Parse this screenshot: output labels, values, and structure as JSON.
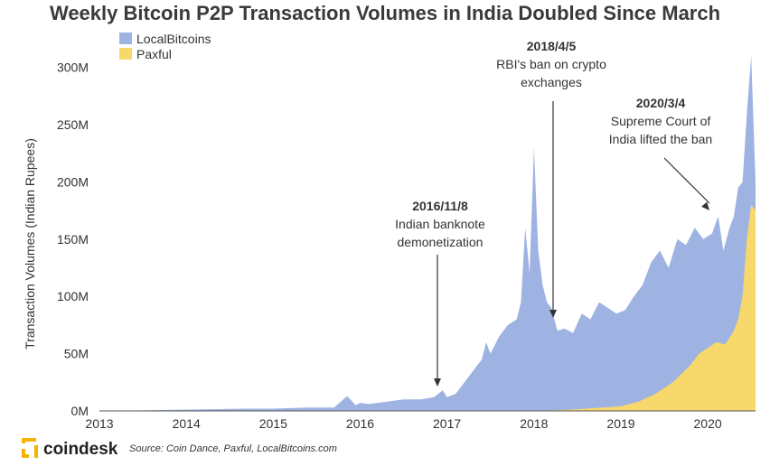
{
  "chart_data": {
    "type": "area",
    "title": "Weekly Bitcoin P2P Transaction Volumes in India Doubled Since March",
    "xlabel": "",
    "ylabel": "Transaction Volumes (Indian Rupees)",
    "xlim": [
      2013.0,
      2020.55
    ],
    "ylim": [
      0,
      310
    ],
    "y_unit": "M",
    "y_ticks": [
      "0M",
      "50M",
      "100M",
      "150M",
      "200M",
      "250M",
      "300M"
    ],
    "y_tick_values": [
      0,
      50,
      100,
      150,
      200,
      250,
      300
    ],
    "x_ticks": [
      "2013",
      "2014",
      "2015",
      "2016",
      "2017",
      "2018",
      "2019",
      "2020"
    ],
    "x_tick_values": [
      2013,
      2014,
      2015,
      2016,
      2017,
      2018,
      2019,
      2020
    ],
    "grid": false,
    "legend_position": "top-left",
    "stacked": true,
    "series": [
      {
        "name": "LocalBitcoins",
        "color": "#9fb3e3",
        "x": [
          2013.0,
          2013.5,
          2013.9,
          2014.3,
          2014.7,
          2015.0,
          2015.4,
          2015.7,
          2015.85,
          2015.95,
          2016.0,
          2016.1,
          2016.3,
          2016.5,
          2016.7,
          2016.85,
          2016.95,
          2017.0,
          2017.1,
          2017.2,
          2017.3,
          2017.4,
          2017.45,
          2017.5,
          2017.6,
          2017.7,
          2017.8,
          2017.85,
          2017.9,
          2017.95,
          2018.0,
          2018.05,
          2018.1,
          2018.15,
          2018.2,
          2018.27,
          2018.35,
          2018.45,
          2018.55,
          2018.65,
          2018.75,
          2018.85,
          2018.95,
          2019.05,
          2019.15,
          2019.25,
          2019.35,
          2019.45,
          2019.55,
          2019.65,
          2019.75,
          2019.85,
          2019.95,
          2020.05,
          2020.12,
          2020.18,
          2020.25,
          2020.3,
          2020.35,
          2020.4,
          2020.45,
          2020.5,
          2020.55
        ],
        "values": [
          0,
          0.5,
          1,
          1.5,
          2,
          2,
          3,
          3,
          13,
          5,
          7,
          6,
          8,
          10,
          10,
          12,
          18,
          12,
          15,
          25,
          35,
          45,
          60,
          50,
          65,
          75,
          80,
          95,
          160,
          120,
          230,
          140,
          110,
          95,
          90,
          70,
          72,
          68,
          85,
          80,
          95,
          90,
          85,
          88,
          100,
          110,
          130,
          140,
          125,
          150,
          145,
          160,
          150,
          155,
          170,
          140,
          160,
          170,
          195,
          200,
          260,
          310,
          200
        ]
      },
      {
        "name": "Paxful",
        "color": "#f7d86a",
        "x": [
          2013.0,
          2018.0,
          2018.4,
          2018.6,
          2018.8,
          2019.0,
          2019.2,
          2019.4,
          2019.6,
          2019.8,
          2019.9,
          2020.0,
          2020.1,
          2020.2,
          2020.3,
          2020.35,
          2020.4,
          2020.45,
          2020.5,
          2020.55
        ],
        "values": [
          0,
          0,
          1,
          2,
          3,
          4,
          8,
          15,
          25,
          40,
          50,
          55,
          60,
          58,
          70,
          80,
          100,
          150,
          180,
          175
        ]
      }
    ],
    "annotations": [
      {
        "date": "2016/11/8",
        "text": [
          "Indian banknote",
          "demonetization"
        ],
        "x": 2016.86,
        "y": 18
      },
      {
        "date": "2018/4/5",
        "text": [
          "RBI's ban on crypto",
          "exchanges"
        ],
        "x": 2018.26,
        "y": 72
      },
      {
        "date": "2020/3/4",
        "text": [
          "Supreme Court of",
          "India lifted the ban"
        ],
        "x": 2020.17,
        "y": 165
      }
    ]
  },
  "footer": {
    "brand": "coindesk",
    "source": "Source: Coin Dance, Paxful, LocalBitcoins.com"
  }
}
